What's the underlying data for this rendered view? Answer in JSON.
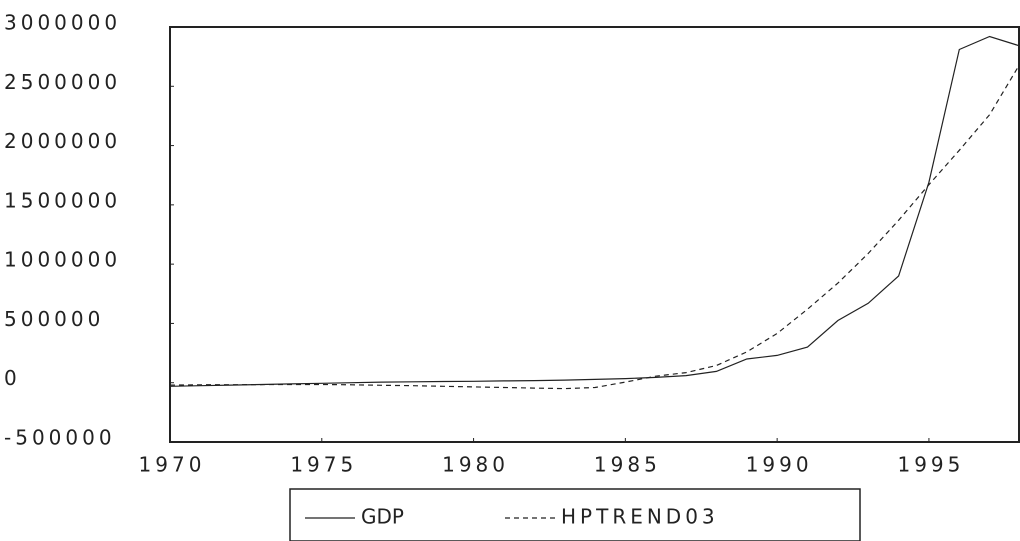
{
  "chart_data": {
    "type": "line",
    "x": [
      1970,
      1971,
      1972,
      1973,
      1974,
      1975,
      1976,
      1977,
      1978,
      1979,
      1980,
      1981,
      1982,
      1983,
      1984,
      1985,
      1986,
      1987,
      1988,
      1989,
      1990,
      1991,
      1992,
      1993,
      1994,
      1995,
      1996,
      1997,
      1998
    ],
    "series": [
      {
        "name": "GDP",
        "color": "#222222",
        "dash": "solid",
        "values": [
          -30000,
          -25000,
          -20000,
          -15000,
          -10000,
          -5000,
          0,
          5000,
          8000,
          10000,
          12000,
          15000,
          18000,
          22000,
          28000,
          35000,
          45000,
          60000,
          95000,
          200000,
          230000,
          300000,
          525000,
          670000,
          900000,
          1690000,
          2810000,
          2920000,
          2840000
        ]
      },
      {
        "name": "HPTREND03",
        "color": "#222222",
        "dash": "dashed",
        "values": [
          -20000,
          -18000,
          -17000,
          -16000,
          -15000,
          -15000,
          -18000,
          -22000,
          -25000,
          -30000,
          -35000,
          -40000,
          -45000,
          -50000,
          -40000,
          5000,
          55000,
          85000,
          145000,
          260000,
          415000,
          620000,
          840000,
          1090000,
          1370000,
          1670000,
          1960000,
          2260000,
          2690000
        ]
      }
    ],
    "xlim": [
      1970,
      1998
    ],
    "xticks": [
      1970,
      1975,
      1980,
      1985,
      1990,
      1995
    ],
    "ylim": [
      -500000,
      3000000
    ],
    "yticks": [
      -500000,
      0,
      500000,
      1000000,
      1500000,
      2000000,
      2500000,
      3000000
    ],
    "grid": false
  }
}
